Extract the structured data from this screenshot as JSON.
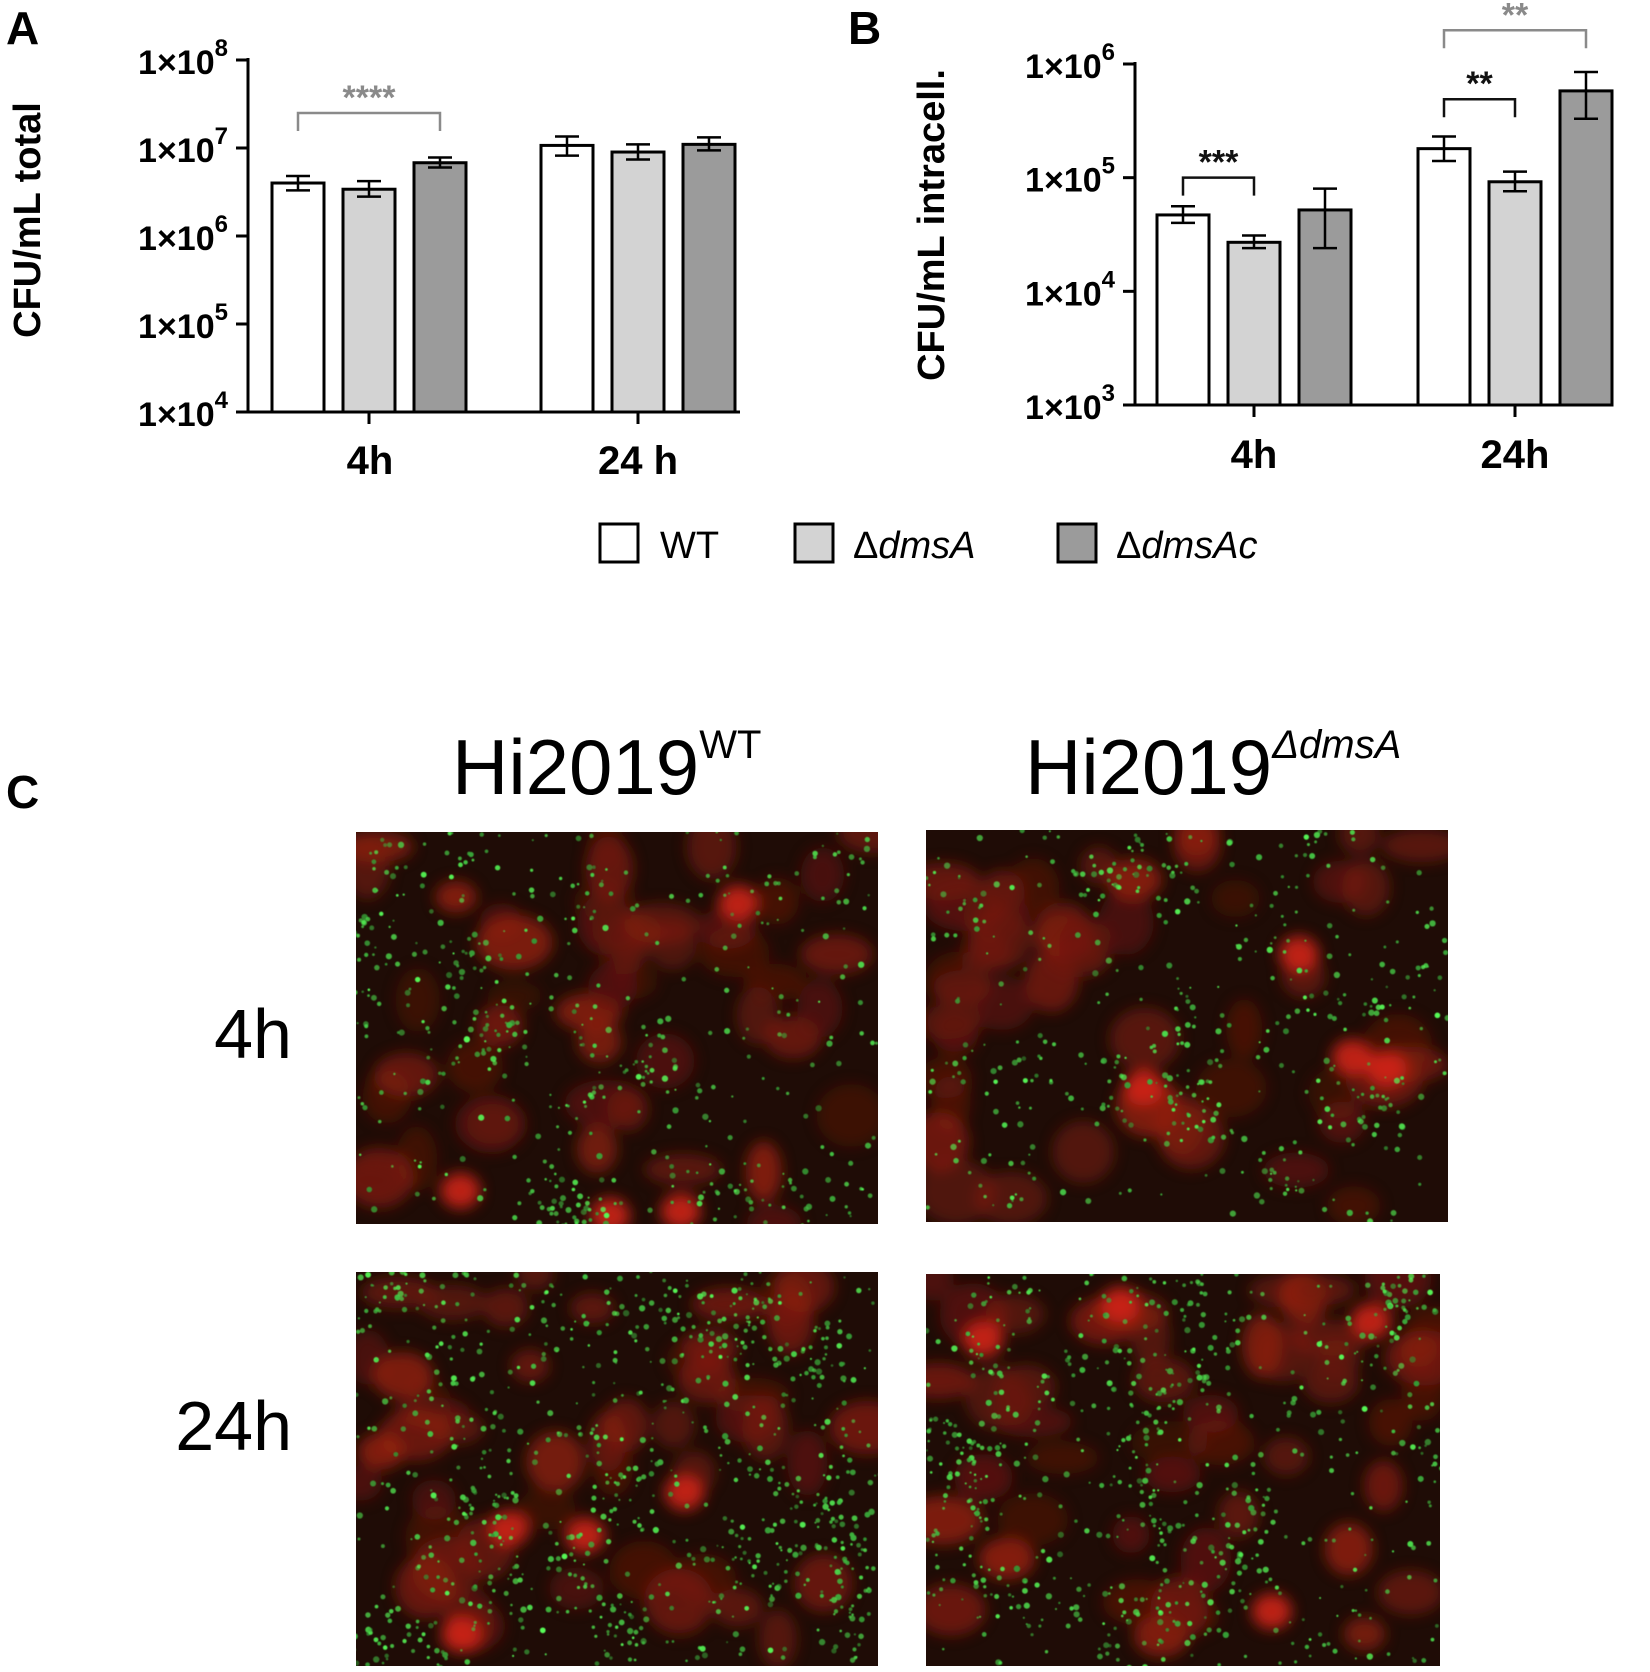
{
  "panels": {
    "a": "A",
    "b": "B",
    "c": "C"
  },
  "chart_data": [
    {
      "panel": "A",
      "type": "bar",
      "scale": "log",
      "ylabel": "CFU/mL total",
      "ylim": [
        10000,
        100000000
      ],
      "yticks": [
        10000,
        100000,
        1000000,
        10000000,
        100000000
      ],
      "ytick_labels": [
        {
          "base": "1×10",
          "exp": "4"
        },
        {
          "base": "1×10",
          "exp": "5"
        },
        {
          "base": "1×10",
          "exp": "6"
        },
        {
          "base": "1×10",
          "exp": "7"
        },
        {
          "base": "1×10",
          "exp": "8"
        }
      ],
      "categories": [
        "4h",
        "24 h"
      ],
      "series": [
        {
          "name": "WT",
          "values": [
            4000000,
            10700000
          ],
          "err_low": [
            3300000,
            8200000
          ],
          "err_high": [
            4800000,
            13500000
          ]
        },
        {
          "name": "ΔdmsA",
          "values": [
            3400000,
            9000000
          ],
          "err_low": [
            2800000,
            7400000
          ],
          "err_high": [
            4200000,
            11000000
          ]
        },
        {
          "name": "ΔdmsAc",
          "values": [
            6800000,
            11000000
          ],
          "err_low": [
            6000000,
            9400000
          ],
          "err_high": [
            7800000,
            13200000
          ]
        }
      ],
      "annotations": [
        {
          "text": "****",
          "category": 0,
          "from_series": 0,
          "to_series": 2,
          "y": 25000000,
          "color": "#8a8a8a"
        }
      ]
    },
    {
      "panel": "B",
      "type": "bar",
      "scale": "log",
      "ylabel": "CFU/mL intracell.",
      "ylim": [
        1000,
        1000000
      ],
      "yticks": [
        1000,
        10000,
        100000,
        1000000
      ],
      "ytick_labels": [
        {
          "base": "1×10",
          "exp": "3"
        },
        {
          "base": "1×10",
          "exp": "4"
        },
        {
          "base": "1×10",
          "exp": "5"
        },
        {
          "base": "1×10",
          "exp": "6"
        }
      ],
      "categories": [
        "4h",
        "24h"
      ],
      "series": [
        {
          "name": "WT",
          "values": [
            47000,
            180000
          ],
          "err_low": [
            40000,
            140000
          ],
          "err_high": [
            56000,
            230000
          ]
        },
        {
          "name": "ΔdmsA",
          "values": [
            27000,
            92000
          ],
          "err_low": [
            24000,
            76000
          ],
          "err_high": [
            31000,
            113000
          ]
        },
        {
          "name": "ΔdmsAc",
          "values": [
            52000,
            580000
          ],
          "err_low": [
            24000,
            330000
          ],
          "err_high": [
            80000,
            850000
          ]
        }
      ],
      "annotations": [
        {
          "text": "***",
          "category": 0,
          "from_series": 0,
          "to_series": 1,
          "y": 100000,
          "color": "#111111"
        },
        {
          "text": "**",
          "category": 1,
          "from_series": 0,
          "to_series": 1,
          "y": 490000,
          "color": "#111111"
        },
        {
          "text": "**",
          "category": 1,
          "from_series": 0,
          "to_series": 2,
          "y": 1980000,
          "color": "#8a8a8a"
        }
      ]
    }
  ],
  "legend": [
    {
      "prefix": "",
      "italic": "",
      "plain": "WT",
      "color": "#ffffff"
    },
    {
      "prefix": "Δ",
      "italic": "dmsA",
      "plain": "",
      "color": "#d3d3d3"
    },
    {
      "prefix": "Δ",
      "italic": "dmsAc",
      "plain": "",
      "color": "#9b9b9b"
    }
  ],
  "colors": {
    "wt": "#ffffff",
    "dmsA": "#d3d3d3",
    "dmsAc": "#9b9b9b",
    "axis": "#000000",
    "sig_gray": "#8a8a8a"
  },
  "microscopy": {
    "col_titles": [
      {
        "base": "Hi2019",
        "sup": "WT"
      },
      {
        "base": "Hi2019",
        "sup": "ΔdmsA"
      }
    ],
    "row_labels": [
      "4h",
      "24h"
    ],
    "images": [
      {
        "name": "micrograph-wt-4h",
        "green_density": 0.35
      },
      {
        "name": "micrograph-dmsa-4h",
        "green_density": 0.3
      },
      {
        "name": "micrograph-wt-24h",
        "green_density": 0.8
      },
      {
        "name": "micrograph-dmsa-24h",
        "green_density": 0.6
      }
    ]
  }
}
